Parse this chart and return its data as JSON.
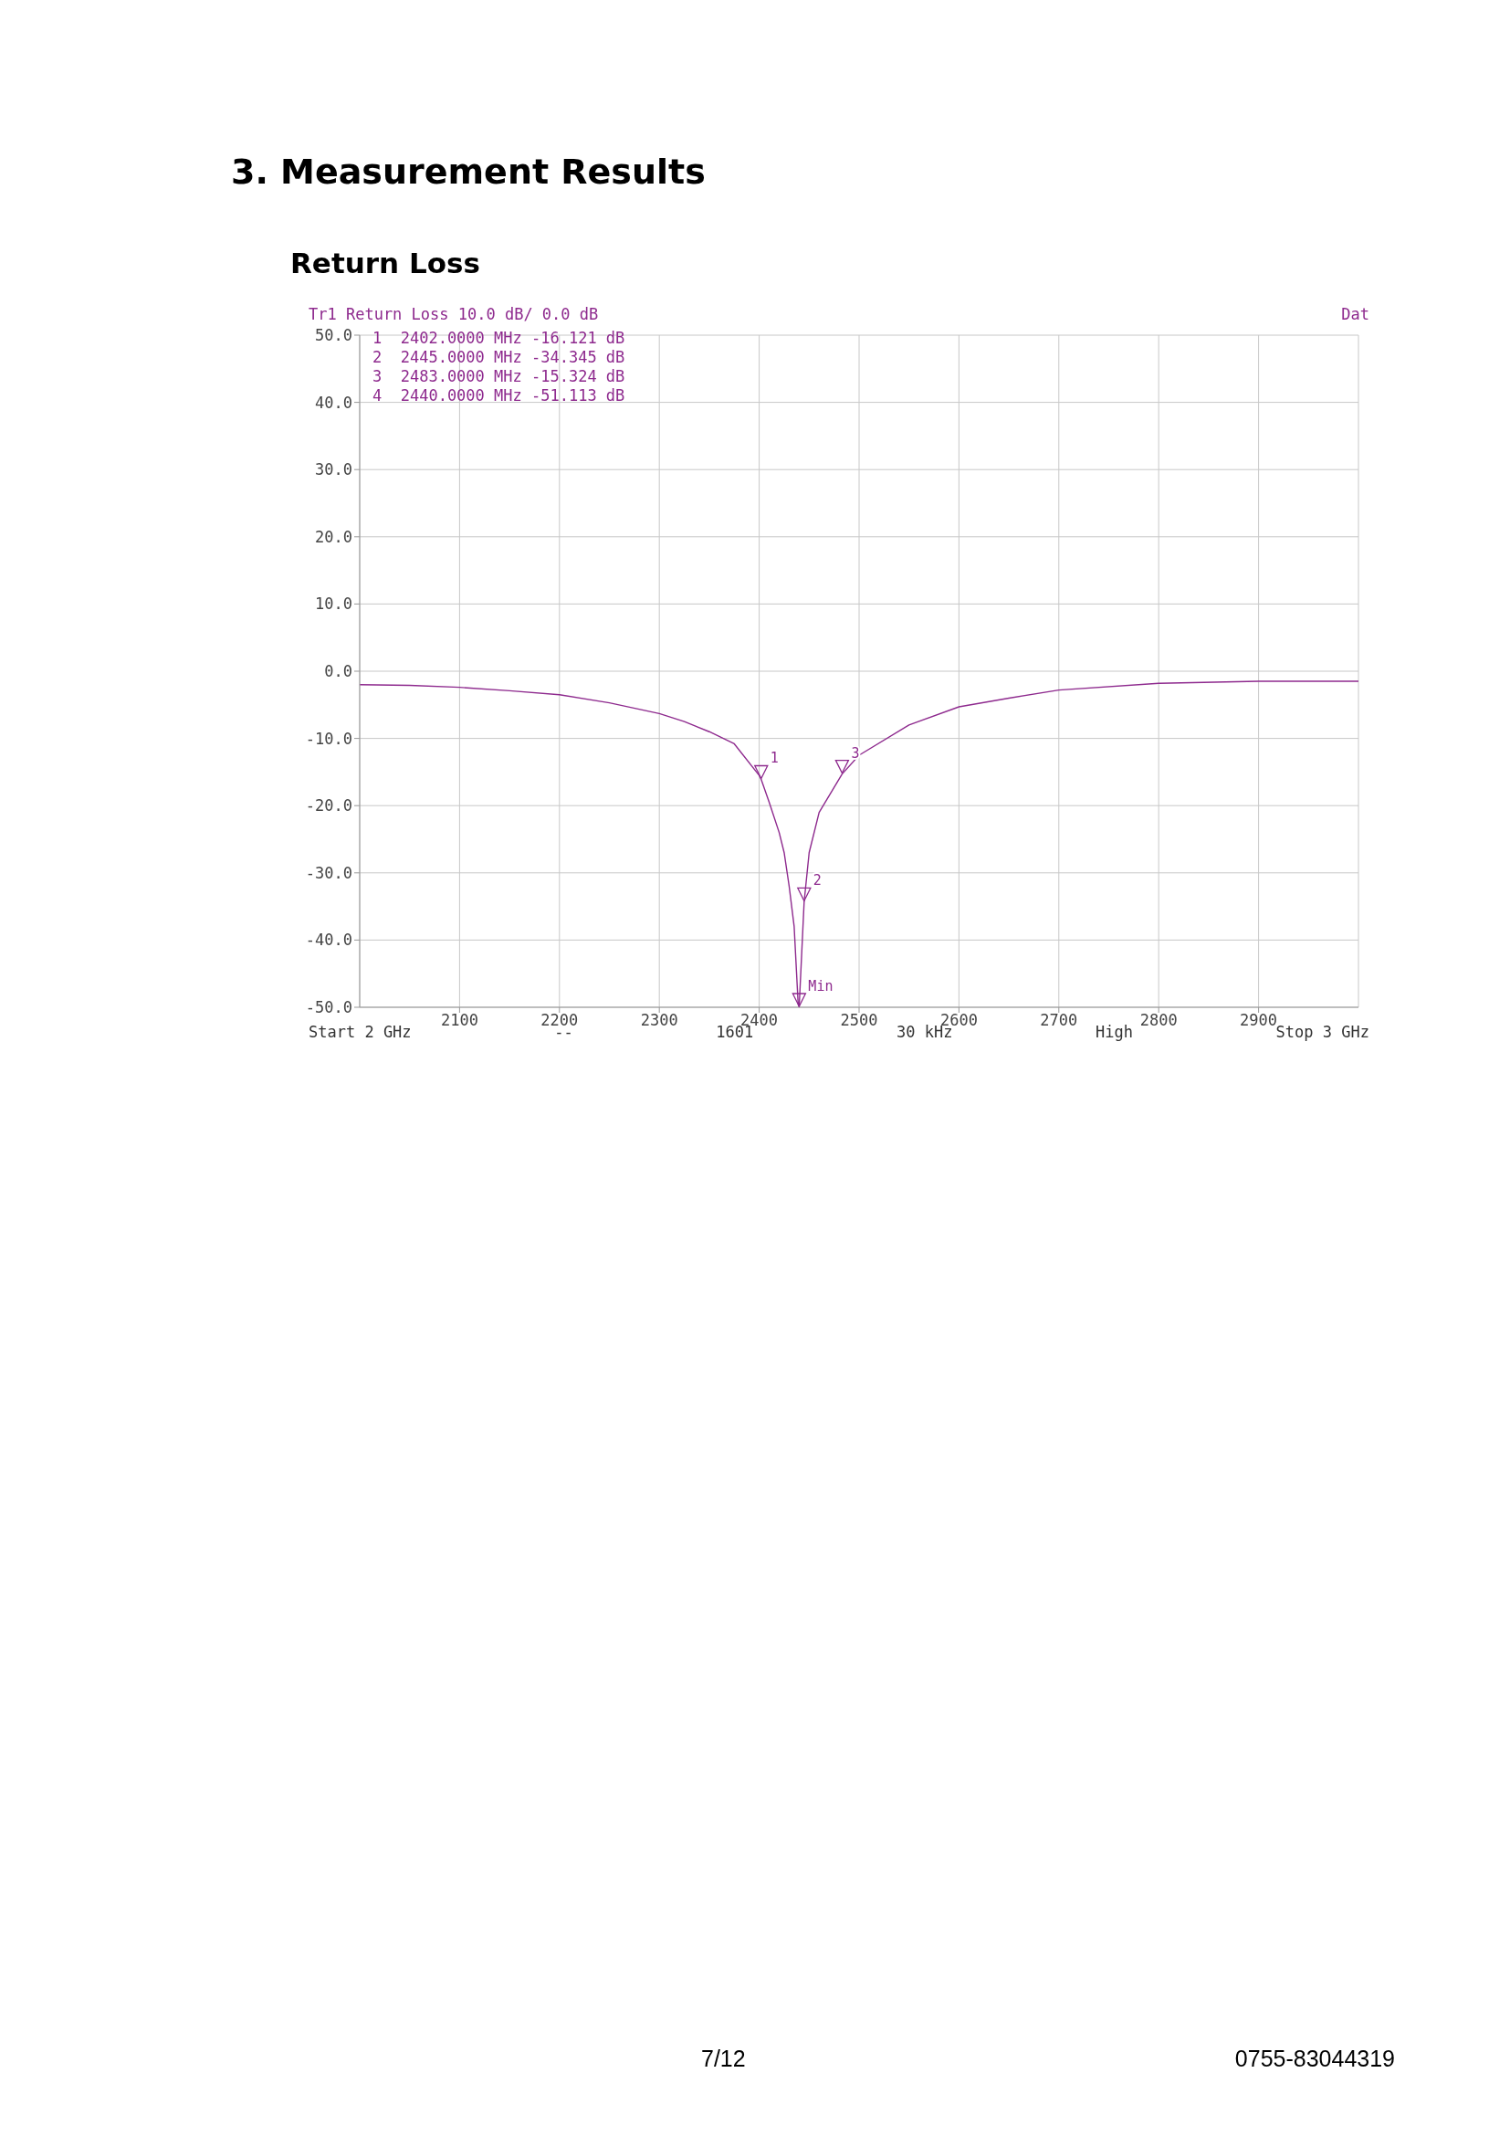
{
  "chart_data": {
    "type": "line",
    "title": "3.  Measurement Results",
    "subtitle": "Return Loss",
    "x": [
      2000,
      2050,
      2100,
      2150,
      2200,
      2250,
      2300,
      2325,
      2350,
      2375,
      2400,
      2402,
      2410,
      2420,
      2425,
      2430,
      2435,
      2439,
      2440,
      2445,
      2450,
      2460,
      2483,
      2500,
      2550,
      2600,
      2650,
      2700,
      2800,
      2900,
      3000
    ],
    "series": [
      {
        "color": "#8e2a8e",
        "values": [
          -2.0,
          -2.1,
          -2.4,
          -2.9,
          -3.5,
          -4.7,
          -6.3,
          -7.5,
          -9.0,
          -10.8,
          -15.5,
          -16.1,
          -19.5,
          -24,
          -27,
          -32,
          -38,
          -49.5,
          -50,
          -34.3,
          -27,
          -21,
          -15.3,
          -12.5,
          -8,
          -5.3,
          -4,
          -2.8,
          -1.8,
          -1.5,
          -1.5
        ]
      }
    ],
    "xlim": [
      2000,
      3000
    ],
    "xticks": [
      2100,
      2200,
      2300,
      2400,
      2500,
      2600,
      2700,
      2800,
      2900
    ],
    "ylim": [
      -50,
      50
    ],
    "yticks": [
      {
        "value": 50,
        "label": "50.0"
      },
      {
        "value": 40,
        "label": "40.0"
      },
      {
        "value": 30,
        "label": "30.0"
      },
      {
        "value": 20,
        "label": "20.0"
      },
      {
        "value": 10,
        "label": "10.0"
      },
      {
        "value": 0,
        "label": "0.0"
      },
      {
        "value": -10,
        "label": "-10.0"
      },
      {
        "value": -20,
        "label": "-20.0"
      },
      {
        "value": -30,
        "label": "-30.0"
      },
      {
        "value": -40,
        "label": "-40.0"
      },
      {
        "value": -50,
        "label": "-50.0"
      }
    ],
    "grid": true,
    "line_style": "solid",
    "annotations": [
      "Tr1 Return Loss 10.0 dB/ 0.0 dB",
      "Dat",
      "1  2402.0000 MHz -16.121 dB",
      "2  2445.0000 MHz -34.345 dB",
      "3  2483.0000 MHz -15.324 dB",
      "4  2440.0000 MHz -51.113 dB",
      "Start 2 GHz",
      "--",
      "1601",
      "30 kHz",
      "High",
      "Stop 3 GHz",
      "7/12",
      "0755-83044319",
      {
        "text": "1",
        "x": 2402,
        "y": -16.1
      },
      {
        "text": "2",
        "x": 2445,
        "y": -34.3
      },
      {
        "text": "3",
        "x": 2483,
        "y": -15.3
      },
      {
        "text": "Min",
        "x": 2440,
        "y": -50
      }
    ]
  }
}
